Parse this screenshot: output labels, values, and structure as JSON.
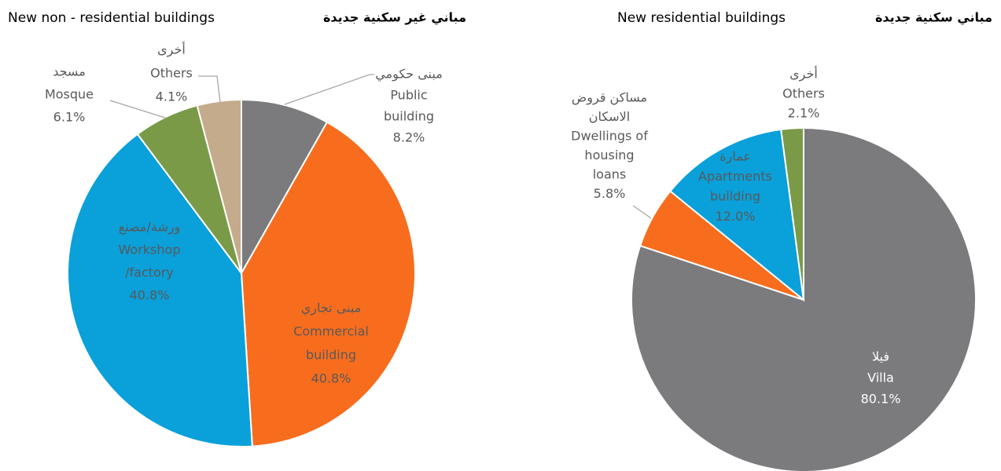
{
  "chart_data": [
    {
      "type": "pie",
      "title": "مباني غير سكنية جديدة",
      "subtitle": "New non - residential buildings",
      "categories": [
        [
          "مبنى حكومي",
          "Public",
          "building"
        ],
        [
          "مبنى تجاري",
          "Commercial",
          "building"
        ],
        [
          "ورشة/مصنع",
          "Workshop",
          "/factory"
        ],
        [
          "مسجد",
          "Mosque"
        ],
        [
          "أخرى",
          "Others"
        ]
      ],
      "values": [
        8.2,
        40.8,
        40.8,
        6.1,
        4.1
      ],
      "value_labels": [
        "8.2%",
        "40.8%",
        "40.8%",
        "6.1%",
        "4.1%"
      ],
      "colors": [
        "#7b7b7e",
        "#f76d1d",
        "#0aa0da",
        "#7a9a48",
        "#c4ab8b"
      ]
    },
    {
      "type": "pie",
      "title": "مباني سكنية جديدة",
      "subtitle": "New residential buildings",
      "categories": [
        [
          "فيلا",
          "Villa"
        ],
        [
          "مساكن قروض",
          "الاسكان",
          "Dwellings of",
          "housing",
          "loans"
        ],
        [
          "عمارة",
          "Apartments",
          "building"
        ],
        [
          "أخرى",
          "Others"
        ]
      ],
      "values": [
        80.1,
        5.8,
        12.0,
        2.1
      ],
      "value_labels": [
        "80.1%",
        "5.8%",
        "12.0%",
        "2.1%"
      ],
      "colors": [
        "#7b7b7e",
        "#f76d1d",
        "#0aa0da",
        "#7a9a48"
      ]
    }
  ]
}
